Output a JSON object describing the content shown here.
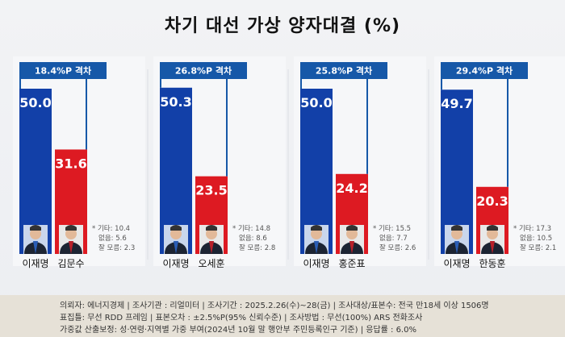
{
  "title": "차기 대선 가상 양자대결 (%)",
  "colors": {
    "blue": "#1240a8",
    "red": "#dd1a22",
    "gap_box": "#1658a8"
  },
  "chart_data": {
    "type": "bar",
    "unit": "%",
    "groups": [
      {
        "gap_label": "18.4%P 격차",
        "candidates": [
          {
            "name": "이재명",
            "value": 50.0,
            "label": "50.0",
            "color": "blue"
          },
          {
            "name": "김문수",
            "value": 31.6,
            "label": "31.6",
            "color": "red"
          }
        ],
        "notes": [
          "* 기타: 10.4",
          "없음: 5.6",
          "잘 모름: 2.3"
        ]
      },
      {
        "gap_label": "26.8%P 격차",
        "candidates": [
          {
            "name": "이재명",
            "value": 50.3,
            "label": "50.3",
            "color": "blue"
          },
          {
            "name": "오세훈",
            "value": 23.5,
            "label": "23.5",
            "color": "red"
          }
        ],
        "notes": [
          "* 기타: 14.8",
          "없음: 8.6",
          "잘 모름: 2.8"
        ]
      },
      {
        "gap_label": "25.8%P 격차",
        "candidates": [
          {
            "name": "이재명",
            "value": 50.0,
            "label": "50.0",
            "color": "blue"
          },
          {
            "name": "홍준표",
            "value": 24.2,
            "label": "24.2",
            "color": "red"
          }
        ],
        "notes": [
          "* 기타: 15.5",
          "없음: 7.7",
          "잘 모름: 2.6"
        ]
      },
      {
        "gap_label": "29.4%P 격차",
        "candidates": [
          {
            "name": "이재명",
            "value": 49.7,
            "label": "49.7",
            "color": "blue"
          },
          {
            "name": "한동훈",
            "value": 20.3,
            "label": "20.3",
            "color": "red"
          }
        ],
        "notes": [
          "* 기타: 17.3",
          "없음: 10.5",
          "잘 모름: 2.1"
        ]
      }
    ]
  },
  "footer": {
    "line1": "의뢰자: 에너지경제 | 조사기관 : 리얼미터  |  조사기간 : 2025.2.26(수)~28(금) | 조사대상/표본수:  전국 만18세 이상 1506명",
    "line2": "표집틀: 무선 RDD 프레임 | 표본오차 : ±2.5%P(95% 신뢰수준) | 조사방법 : 무선(100%) ARS 전화조사",
    "line3": "가중값 산출보정: 성·연령·지역별  가중 부여(2024년 10월 말 행안부 주민등록인구  기준) | 응답률 : 6.0%"
  }
}
